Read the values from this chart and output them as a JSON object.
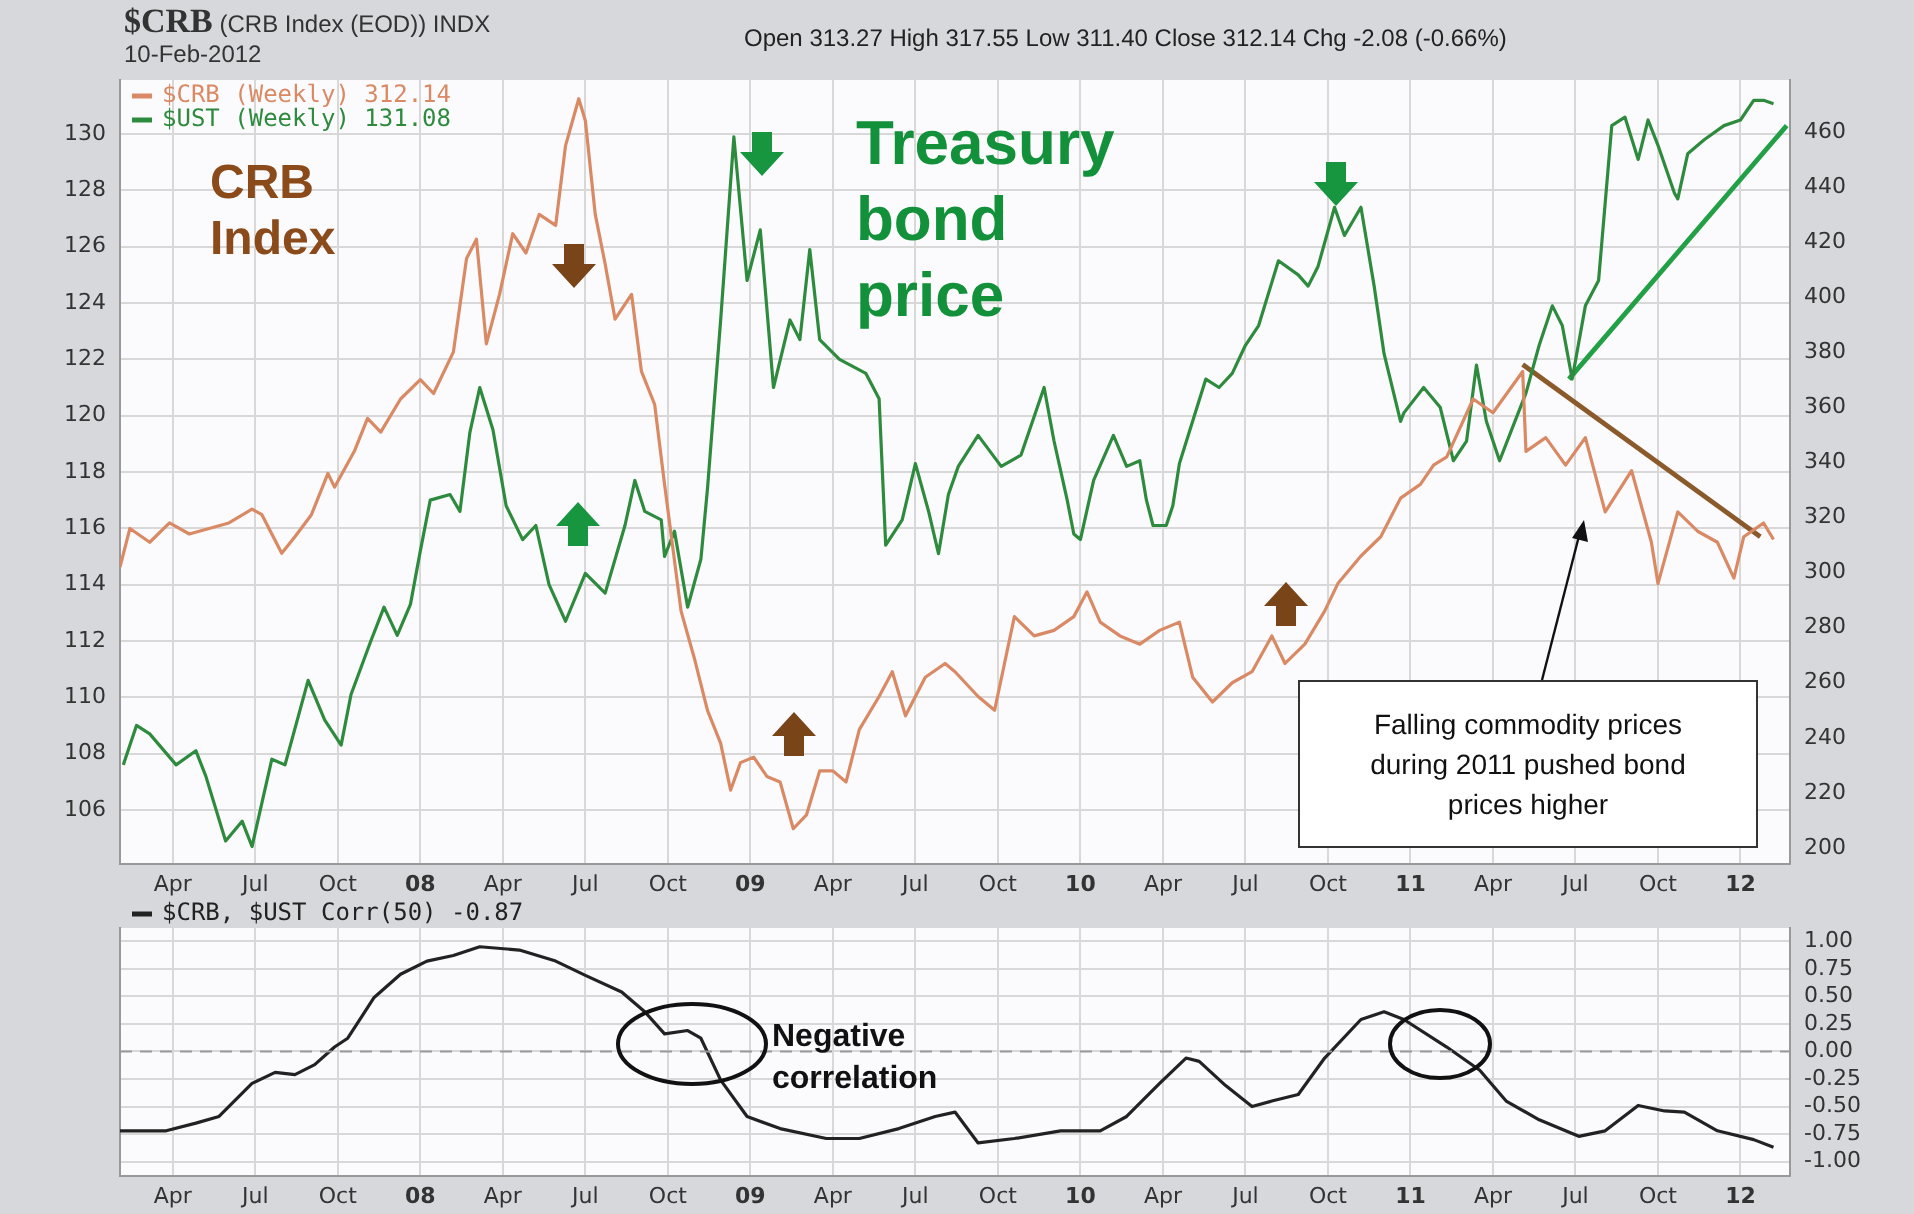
{
  "chart_data": [
    {
      "type": "line",
      "title": "$CRB (CRB Index (EOD)) INDX",
      "subtitle": "10-Feb-2012",
      "annotations": [
        "Open 313.27 High 317.55 Low 311.40 Close 312.14 Chg -2.08 (-0.66%)",
        "CRB Index",
        "Treasury bond price",
        "Falling commodity prices during 2011 pushed bond prices higher"
      ],
      "legend": "top left",
      "grid": true,
      "xlim": [
        2007.09,
        2012.15
      ],
      "xticks": [
        {
          "value": 2007.25,
          "label": "Apr"
        },
        {
          "value": 2007.5,
          "label": "Jul"
        },
        {
          "value": 2007.75,
          "label": "Oct"
        },
        {
          "value": 2008,
          "label": "08"
        },
        {
          "value": 2008.25,
          "label": "Apr"
        },
        {
          "value": 2008.5,
          "label": "Jul"
        },
        {
          "value": 2008.75,
          "label": "Oct"
        },
        {
          "value": 2009,
          "label": "09"
        },
        {
          "value": 2009.25,
          "label": "Apr"
        },
        {
          "value": 2009.5,
          "label": "Jul"
        },
        {
          "value": 2009.75,
          "label": "Oct"
        },
        {
          "value": 2010,
          "label": "10"
        },
        {
          "value": 2010.25,
          "label": "Apr"
        },
        {
          "value": 2010.5,
          "label": "Jul"
        },
        {
          "value": 2010.75,
          "label": "Oct"
        },
        {
          "value": 2011,
          "label": "11"
        },
        {
          "value": 2011.25,
          "label": "Apr"
        },
        {
          "value": 2011.5,
          "label": "Jul"
        },
        {
          "value": 2011.75,
          "label": "Oct"
        },
        {
          "value": 2012,
          "label": "12"
        }
      ],
      "ylim": [
        104.08,
        131.92
      ],
      "yticks": [
        106,
        108,
        110,
        112,
        114,
        116,
        118,
        120,
        122,
        124,
        126,
        128,
        130
      ],
      "y2lim": [
        194.2,
        478.8
      ],
      "y2ticks": [
        200,
        220,
        240,
        260,
        280,
        300,
        320,
        340,
        360,
        380,
        400,
        420,
        440,
        460
      ],
      "series": [
        {
          "name": "$CRB (Weekly) 312.14",
          "color": "#d98a64",
          "axis": "y2",
          "x": [
            2007.09,
            2007.12,
            2007.18,
            2007.24,
            2007.3,
            2007.36,
            2007.42,
            2007.49,
            2007.52,
            2007.58,
            2007.62,
            2007.67,
            2007.72,
            2007.74,
            2007.8,
            2007.84,
            2007.88,
            2007.94,
            2008,
            2008.04,
            2008.1,
            2008.14,
            2008.17,
            2008.2,
            2008.24,
            2008.28,
            2008.32,
            2008.36,
            2008.41,
            2008.44,
            2008.48,
            2008.5,
            2008.53,
            2008.56,
            2008.59,
            2008.64,
            2008.67,
            2008.71,
            2008.74,
            2008.79,
            2008.83,
            2008.87,
            2008.91,
            2008.94,
            2008.97,
            2009.01,
            2009.05,
            2009.09,
            2009.13,
            2009.17,
            2009.21,
            2009.25,
            2009.29,
            2009.33,
            2009.39,
            2009.43,
            2009.47,
            2009.53,
            2009.59,
            2009.62,
            2009.69,
            2009.74,
            2009.8,
            2009.86,
            2009.92,
            2009.98,
            2010.02,
            2010.06,
            2010.12,
            2010.18,
            2010.24,
            2010.3,
            2010.34,
            2010.4,
            2010.46,
            2010.52,
            2010.58,
            2010.62,
            2010.68,
            2010.74,
            2010.78,
            2010.85,
            2010.91,
            2010.97,
            2011.03,
            2011.07,
            2011.11,
            2011.19,
            2011.25,
            2011.31,
            2011.34,
            2011.35,
            2011.41,
            2011.47,
            2011.53,
            2011.59,
            2011.67,
            2011.73,
            2011.75,
            2011.81,
            2011.87,
            2011.93,
            2011.98,
            2012.01,
            2012.07,
            2012.1
          ],
          "values": [
            302,
            316,
            311,
            318,
            314,
            316,
            318,
            323,
            321,
            307,
            313,
            321,
            336,
            331,
            344,
            356,
            351,
            363,
            370,
            365,
            380,
            414,
            421,
            383,
            401,
            423,
            416,
            430,
            426,
            455,
            472,
            464,
            430,
            412,
            392,
            401,
            373,
            361,
            332,
            286,
            269,
            250,
            238,
            221,
            231,
            233,
            226,
            224,
            207,
            212,
            228,
            228,
            224,
            243,
            255,
            264,
            248,
            262,
            267,
            264,
            255,
            250,
            284,
            277,
            279,
            284,
            293,
            282,
            277,
            274,
            279,
            282,
            262,
            253,
            260,
            264,
            277,
            267,
            274,
            286,
            296,
            306,
            313,
            327,
            332,
            339,
            342,
            363,
            358,
            368,
            373,
            344,
            349,
            339,
            349,
            322,
            337,
            311,
            296,
            322,
            315,
            311,
            298,
            313,
            318,
            312
          ]
        },
        {
          "name": "$UST (Weekly) 131.08",
          "color": "#2e8b3e",
          "axis": "y",
          "x": [
            2007.1,
            2007.14,
            2007.18,
            2007.26,
            2007.32,
            2007.35,
            2007.41,
            2007.46,
            2007.49,
            2007.55,
            2007.59,
            2007.66,
            2007.71,
            2007.76,
            2007.79,
            2007.85,
            2007.89,
            2007.93,
            2007.97,
            2008,
            2008.03,
            2008.09,
            2008.12,
            2008.15,
            2008.18,
            2008.22,
            2008.26,
            2008.31,
            2008.35,
            2008.39,
            2008.44,
            2008.5,
            2008.56,
            2008.62,
            2008.65,
            2008.68,
            2008.73,
            2008.74,
            2008.77,
            2008.81,
            2008.85,
            2008.87,
            2008.91,
            2008.95,
            2008.99,
            2009.03,
            2009.07,
            2009.12,
            2009.15,
            2009.18,
            2009.21,
            2009.27,
            2009.35,
            2009.39,
            2009.41,
            2009.46,
            2009.5,
            2009.54,
            2009.57,
            2009.6,
            2009.63,
            2009.69,
            2009.76,
            2009.82,
            2009.89,
            2009.92,
            2009.96,
            2009.98,
            2010,
            2010.04,
            2010.1,
            2010.14,
            2010.18,
            2010.2,
            2010.22,
            2010.26,
            2010.28,
            2010.3,
            2010.34,
            2010.38,
            2010.42,
            2010.46,
            2010.5,
            2010.54,
            2010.6,
            2010.66,
            2010.69,
            2010.72,
            2010.77,
            2010.8,
            2010.85,
            2010.89,
            2010.92,
            2010.97,
            2010.98,
            2011.04,
            2011.09,
            2011.13,
            2011.17,
            2011.2,
            2011.23,
            2011.27,
            2011.31,
            2011.35,
            2011.39,
            2011.43,
            2011.46,
            2011.49,
            2011.53,
            2011.57,
            2011.61,
            2011.65,
            2011.69,
            2011.72,
            2011.75,
            2011.8,
            2011.81,
            2011.84,
            2011.89,
            2011.95,
            2012,
            2012.04,
            2012.07,
            2012.1
          ],
          "values": [
            107.6,
            109,
            108.7,
            107.6,
            108.1,
            107.2,
            104.9,
            105.6,
            104.7,
            107.8,
            107.6,
            110.6,
            109.2,
            108.3,
            110.1,
            112,
            113.2,
            112.2,
            113.3,
            115.2,
            117,
            117.2,
            116.6,
            119.4,
            121,
            119.5,
            116.8,
            115.6,
            116.1,
            114,
            112.7,
            114.4,
            113.7,
            116.1,
            117.7,
            116.6,
            116.3,
            115,
            115.9,
            113.2,
            114.9,
            117.4,
            123.4,
            129.9,
            124.8,
            126.6,
            121,
            123.4,
            122.7,
            125.9,
            122.7,
            122,
            121.5,
            120.6,
            115.4,
            116.3,
            118.3,
            116.6,
            115.1,
            117.2,
            118.2,
            119.3,
            118.2,
            118.6,
            121,
            119.1,
            117,
            115.8,
            115.6,
            117.7,
            119.3,
            118.2,
            118.4,
            117,
            116.1,
            116.1,
            116.8,
            118.3,
            119.8,
            121.3,
            121,
            121.5,
            122.5,
            123.2,
            125.5,
            125,
            124.6,
            125.3,
            127.4,
            126.4,
            127.4,
            124.6,
            122.2,
            119.8,
            120.1,
            121,
            120.3,
            118.4,
            119.1,
            121.8,
            119.8,
            118.4,
            119.6,
            120.8,
            122.5,
            123.9,
            123.2,
            121.3,
            123.9,
            124.8,
            130.3,
            130.6,
            129.1,
            130.5,
            129.6,
            127.9,
            127.7,
            129.3,
            129.8,
            130.3,
            130.5,
            131.2,
            131.2,
            131.08
          ]
        },
        {
          "type": "line",
          "color": "#22a045",
          "axis": "y",
          "x": [
            2011.48,
            2012.14
          ],
          "values": [
            121.3,
            130.3
          ]
        },
        {
          "type": "line",
          "color": "#8b5a2b",
          "axis": "y2",
          "x": [
            2011.34,
            2012.06
          ],
          "values": [
            375.5,
            313
          ]
        }
      ]
    },
    {
      "type": "line",
      "annotations": [
        "Negative correlation"
      ],
      "legend": "top left",
      "grid": true,
      "xlim": [
        2007.09,
        2012.15
      ],
      "xticks": [
        {
          "value": 2007.25,
          "label": "Apr"
        },
        {
          "value": 2007.5,
          "label": "Jul"
        },
        {
          "value": 2007.75,
          "label": "Oct"
        },
        {
          "value": 2008,
          "label": "08"
        },
        {
          "value": 2008.25,
          "label": "Apr"
        },
        {
          "value": 2008.5,
          "label": "Jul"
        },
        {
          "value": 2008.75,
          "label": "Oct"
        },
        {
          "value": 2009,
          "label": "09"
        },
        {
          "value": 2009.25,
          "label": "Apr"
        },
        {
          "value": 2009.5,
          "label": "Jul"
        },
        {
          "value": 2009.75,
          "label": "Oct"
        },
        {
          "value": 2010,
          "label": "10"
        },
        {
          "value": 2010.25,
          "label": "Apr"
        },
        {
          "value": 2010.5,
          "label": "Jul"
        },
        {
          "value": 2010.75,
          "label": "Oct"
        },
        {
          "value": 2011,
          "label": "11"
        },
        {
          "value": 2011.25,
          "label": "Apr"
        },
        {
          "value": 2011.5,
          "label": "Jul"
        },
        {
          "value": 2011.75,
          "label": "Oct"
        },
        {
          "value": 2012,
          "label": "12"
        }
      ],
      "y2lim": [
        -1.13,
        1.12
      ],
      "y2ticks": [
        {
          "value": 1,
          "label": "1.00"
        },
        {
          "value": 0.75,
          "label": "0.75"
        },
        {
          "value": 0.5,
          "label": "0.50"
        },
        {
          "value": 0.25,
          "label": "0.25"
        },
        {
          "value": 0,
          "label": "0.00"
        },
        {
          "value": -0.25,
          "label": "-0.25"
        },
        {
          "value": -0.5,
          "label": "-0.50"
        },
        {
          "value": -0.75,
          "label": "-0.75"
        },
        {
          "value": -1,
          "label": "-1.00"
        }
      ],
      "ref_lines": [
        {
          "axis": "y2",
          "value": 0,
          "color": "#9a9a9a",
          "line_style": "dashed"
        }
      ],
      "series": [
        {
          "name": "$CRB, $UST Corr(50) -0.87",
          "color": "#222222",
          "axis": "y2",
          "x": [
            2007.09,
            2007.23,
            2007.32,
            2007.39,
            2007.49,
            2007.56,
            2007.62,
            2007.68,
            2007.74,
            2007.78,
            2007.86,
            2007.94,
            2008.02,
            2008.1,
            2008.18,
            2008.3,
            2008.41,
            2008.5,
            2008.61,
            2008.68,
            2008.74,
            2008.81,
            2008.85,
            2008.91,
            2008.99,
            2009.09,
            2009.23,
            2009.33,
            2009.45,
            2009.56,
            2009.62,
            2009.69,
            2009.8,
            2009.94,
            2010.06,
            2010.14,
            2010.24,
            2010.32,
            2010.36,
            2010.44,
            2010.52,
            2010.58,
            2010.66,
            2010.74,
            2010.85,
            2010.92,
            2010.98,
            2011.11,
            2011.21,
            2011.29,
            2011.39,
            2011.51,
            2011.59,
            2011.69,
            2011.77,
            2011.83,
            2011.93,
            2012.04,
            2012.1
          ],
          "values": [
            -0.72,
            -0.72,
            -0.65,
            -0.59,
            -0.29,
            -0.19,
            -0.21,
            -0.12,
            0.04,
            0.12,
            0.49,
            0.7,
            0.82,
            0.87,
            0.95,
            0.92,
            0.82,
            0.69,
            0.54,
            0.36,
            0.16,
            0.19,
            0.12,
            -0.26,
            -0.59,
            -0.7,
            -0.79,
            -0.79,
            -0.7,
            -0.59,
            -0.55,
            -0.83,
            -0.79,
            -0.72,
            -0.72,
            -0.59,
            -0.29,
            -0.06,
            -0.09,
            -0.31,
            -0.5,
            -0.45,
            -0.39,
            -0.06,
            0.29,
            0.36,
            0.29,
            0.04,
            -0.17,
            -0.45,
            -0.62,
            -0.77,
            -0.72,
            -0.49,
            -0.54,
            -0.55,
            -0.72,
            -0.8,
            -0.87
          ]
        }
      ]
    }
  ]
}
